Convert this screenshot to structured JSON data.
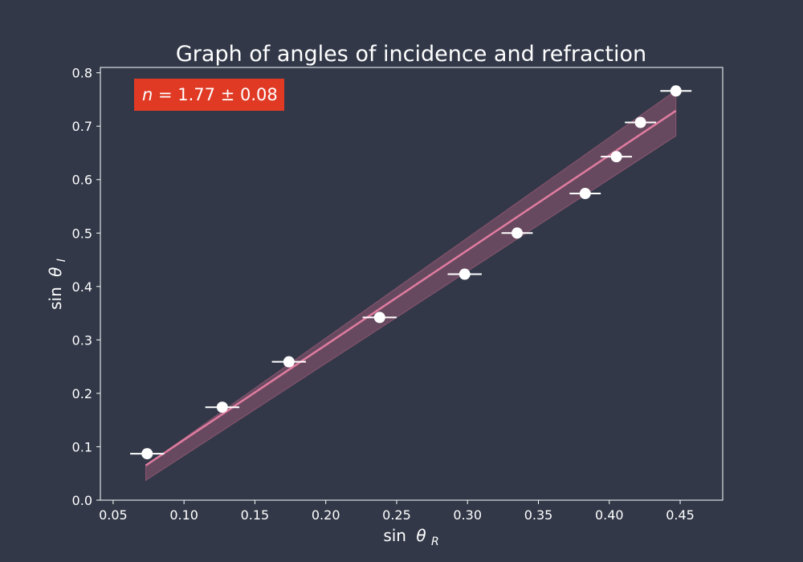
{
  "chart_data": {
    "type": "scatter",
    "title": "Graph of angles of incidence and refraction",
    "xlabel_prefix": "sin",
    "xlabel_symbol": "θ",
    "xlabel_sub": "R",
    "ylabel_prefix": "sin",
    "ylabel_symbol": "θ",
    "ylabel_sub": "I",
    "annotation": {
      "var": "n",
      "rest": " = 1.77 ± 0.08",
      "background": "#e03a25"
    },
    "xlim": [
      0.041,
      0.48
    ],
    "ylim": [
      0.0,
      0.81
    ],
    "xticks": [
      "0.05",
      "0.10",
      "0.15",
      "0.20",
      "0.25",
      "0.30",
      "0.35",
      "0.40",
      "0.45"
    ],
    "yticks": [
      "0.0",
      "0.1",
      "0.2",
      "0.3",
      "0.4",
      "0.5",
      "0.6",
      "0.7",
      "0.8"
    ],
    "grid": false,
    "points": {
      "x": [
        0.074,
        0.127,
        0.174,
        0.238,
        0.298,
        0.335,
        0.383,
        0.405,
        0.422,
        0.447
      ],
      "y": [
        0.087,
        0.174,
        0.259,
        0.342,
        0.423,
        0.5,
        0.574,
        0.643,
        0.707,
        0.766
      ],
      "xerr": [
        0.012,
        0.012,
        0.012,
        0.012,
        0.012,
        0.011,
        0.011,
        0.011,
        0.011,
        0.011
      ]
    },
    "fit": {
      "x": [
        0.073,
        0.447
      ],
      "y": [
        0.065,
        0.729
      ],
      "band_lower": [
        0.037,
        0.682
      ],
      "band_upper": [
        0.065,
        0.767
      ]
    },
    "colors": {
      "background": "#323848",
      "axes": "#ffffff",
      "points": "#ffffff",
      "fit_line": "#e07ca0",
      "band": "#8a5570"
    }
  }
}
